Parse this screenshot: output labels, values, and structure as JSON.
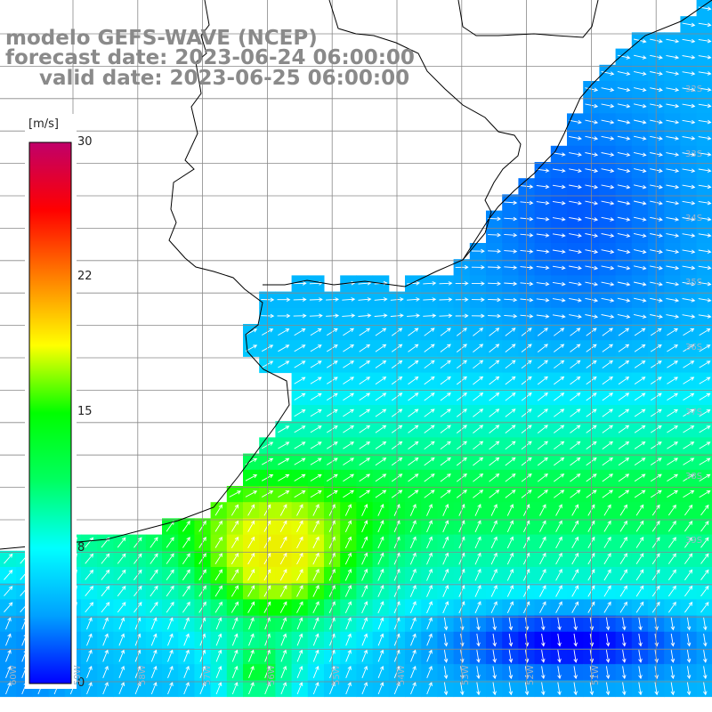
{
  "title": {
    "model": "modelo GEFS-WAVE (NCEP)",
    "forecast": "forecast date: 2023-06-24 06:00:00",
    "valid": "valid date: 2023-06-25 06:00:00"
  },
  "colorbar": {
    "unit": "[m/s]",
    "ticks": [
      "30",
      "22",
      "15",
      "8",
      "0"
    ],
    "colors": [
      "#0000ff",
      "#00a0ff",
      "#00ffff",
      "#00ff60",
      "#00ff00",
      "#ffff00",
      "#ff8000",
      "#ff0000",
      "#c0006a"
    ]
  },
  "lat_labels": [
    "32S",
    "33S",
    "34S",
    "35S",
    "36S",
    "37S",
    "38S",
    "39S"
  ],
  "lon_labels": [
    "60W",
    "59W",
    "58W",
    "57W",
    "56W",
    "55W",
    "54W",
    "53W",
    "52W",
    "51W"
  ],
  "colors": {
    "ocean_arrow": "#ffffff",
    "coast": "#000000",
    "grid": "#888888"
  }
}
